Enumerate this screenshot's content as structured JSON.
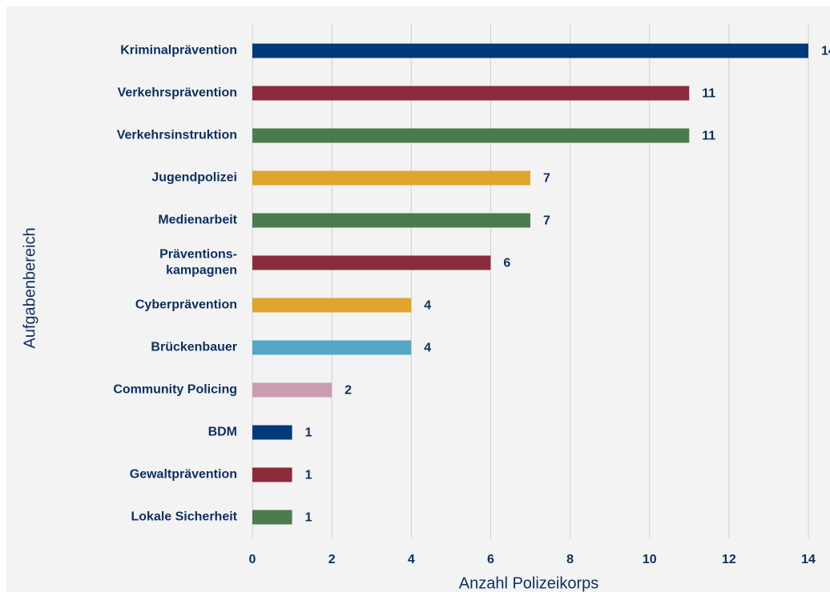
{
  "chart_data": {
    "type": "bar",
    "orientation": "horizontal",
    "categories": [
      "Kriminalprävention",
      "Verkehrsprävention",
      "Verkehrsinstruktion",
      "Jugendpolizei",
      "Medienarbeit",
      "Präventions-\nkampagnen",
      "Cyberprävention",
      "Brückenbauer",
      "Community Policing",
      "BDM",
      "Gewaltprävention",
      "Lokale Sicherheit"
    ],
    "values": [
      14,
      11,
      11,
      7,
      7,
      6,
      4,
      4,
      2,
      1,
      1,
      1
    ],
    "colors": [
      "#003a78",
      "#8b2c3c",
      "#4a7c4e",
      "#e0a52e",
      "#4a7c4e",
      "#8b2c3c",
      "#e0a52e",
      "#55a5c4",
      "#cc9ab2",
      "#003a78",
      "#8b2c3c",
      "#4a7c4e"
    ],
    "xlim": [
      0,
      14
    ],
    "xticks": [
      0,
      2,
      4,
      6,
      8,
      10,
      12,
      14
    ],
    "xlabel": "Anzahl Polizeikorps",
    "ylabel": "Aufgabenbereich",
    "grid": true
  }
}
